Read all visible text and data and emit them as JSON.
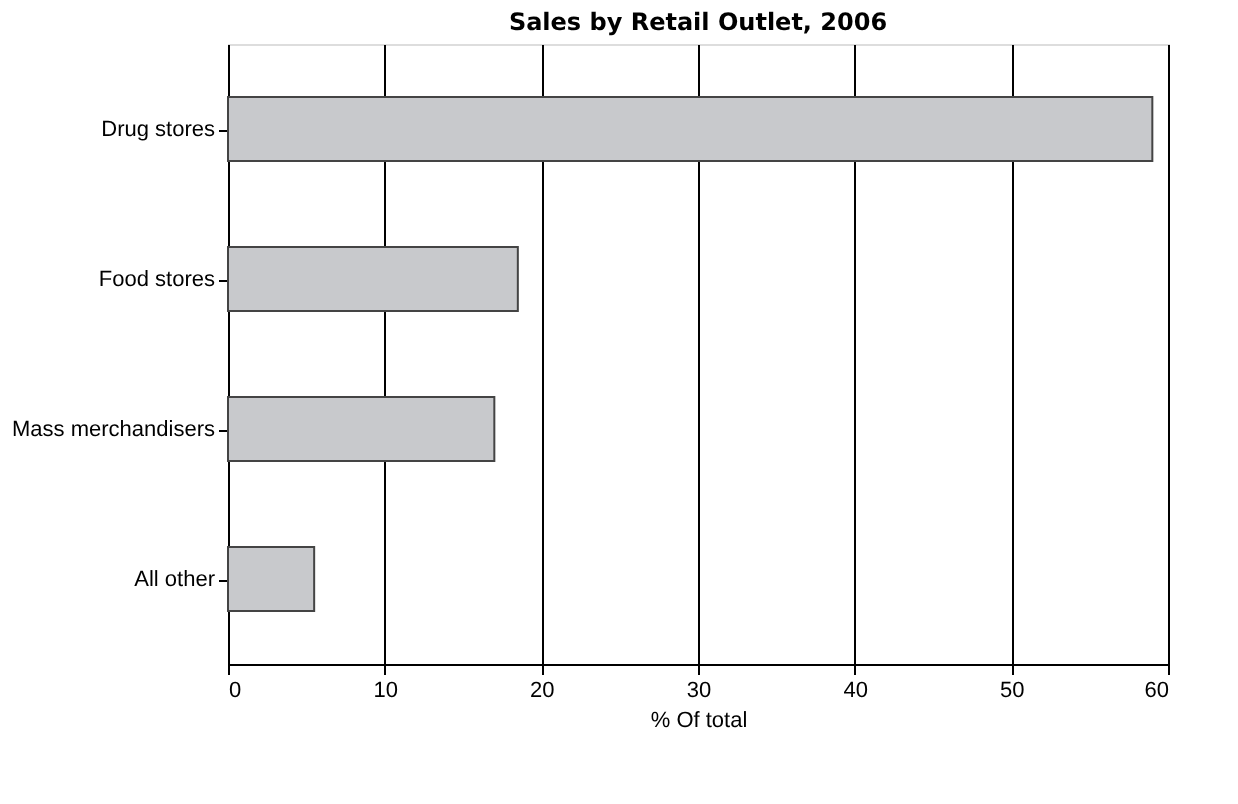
{
  "chart_data": {
    "type": "bar",
    "orientation": "horizontal",
    "title": "Sales by Retail Outlet, 2006",
    "xlabel": "% Of total",
    "categories": [
      "Drug stores",
      "Food stores",
      "Mass merchandisers",
      "All other"
    ],
    "values": [
      59,
      18.5,
      17,
      5.5
    ],
    "color": "#c8c9cc",
    "xlim": [
      0,
      60
    ],
    "xticks": [
      0,
      10,
      20,
      30,
      40,
      50,
      60
    ],
    "grid": "x"
  }
}
